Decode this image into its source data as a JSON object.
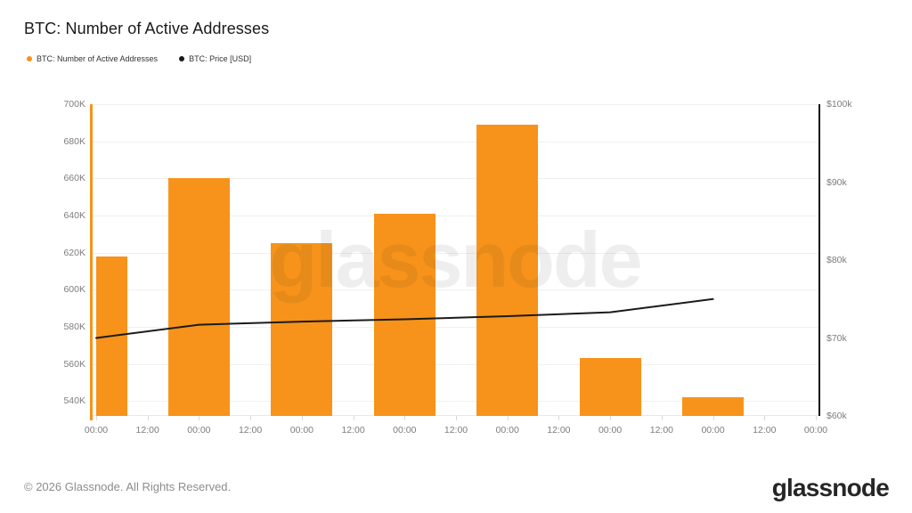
{
  "header": {
    "title": "BTC: Number of Active Addresses",
    "legend": [
      {
        "label": "BTC: Number of Active Addresses",
        "color": "#f7931a"
      },
      {
        "label": "BTC: Price [USD]",
        "color": "#1a1a1a"
      }
    ]
  },
  "chart_data": {
    "type": "bar",
    "title": "BTC: Number of Active Addresses",
    "watermark": "glassnode",
    "grid": true,
    "x_tick_labels": [
      "00:00",
      "12:00",
      "00:00",
      "12:00",
      "00:00",
      "12:00",
      "00:00",
      "12:00",
      "00:00",
      "12:00",
      "00:00",
      "12:00",
      "00:00",
      "12:00",
      "00:00"
    ],
    "series": [
      {
        "name": "BTC: Number of Active Addresses",
        "type": "bar",
        "color": "#f7931a",
        "axis": "left",
        "tick_indices": [
          0,
          2,
          4,
          6,
          8,
          10,
          12
        ],
        "values": [
          618000,
          660000,
          625000,
          641000,
          689000,
          563000,
          542000
        ]
      },
      {
        "name": "BTC: Price [USD]",
        "type": "line",
        "color": "#1b1b1b",
        "axis": "right",
        "tick_indices": [
          0,
          2,
          4,
          6,
          8,
          10,
          12
        ],
        "values": [
          70000,
          71700,
          72100,
          72400,
          72800,
          73300,
          75000
        ]
      }
    ],
    "left_axis": {
      "tick_labels": [
        "700K",
        "680K",
        "660K",
        "640K",
        "620K",
        "600K",
        "580K",
        "560K",
        "540K"
      ],
      "tick_values": [
        700000,
        680000,
        660000,
        640000,
        620000,
        600000,
        580000,
        560000,
        540000
      ],
      "min": 532000,
      "max": 700000,
      "axis_color": "#f7931a"
    },
    "right_axis": {
      "tick_labels": [
        "$100k",
        "$90k",
        "$80k",
        "$70k",
        "$60k"
      ],
      "tick_values": [
        100000,
        90000,
        80000,
        70000,
        60000
      ],
      "min": 60000,
      "max": 100000,
      "axis_color": "#111111"
    },
    "legend_position": "top-left"
  },
  "footer": {
    "copyright": "© 2026 Glassnode. All Rights Reserved.",
    "brand": "glassnode"
  }
}
